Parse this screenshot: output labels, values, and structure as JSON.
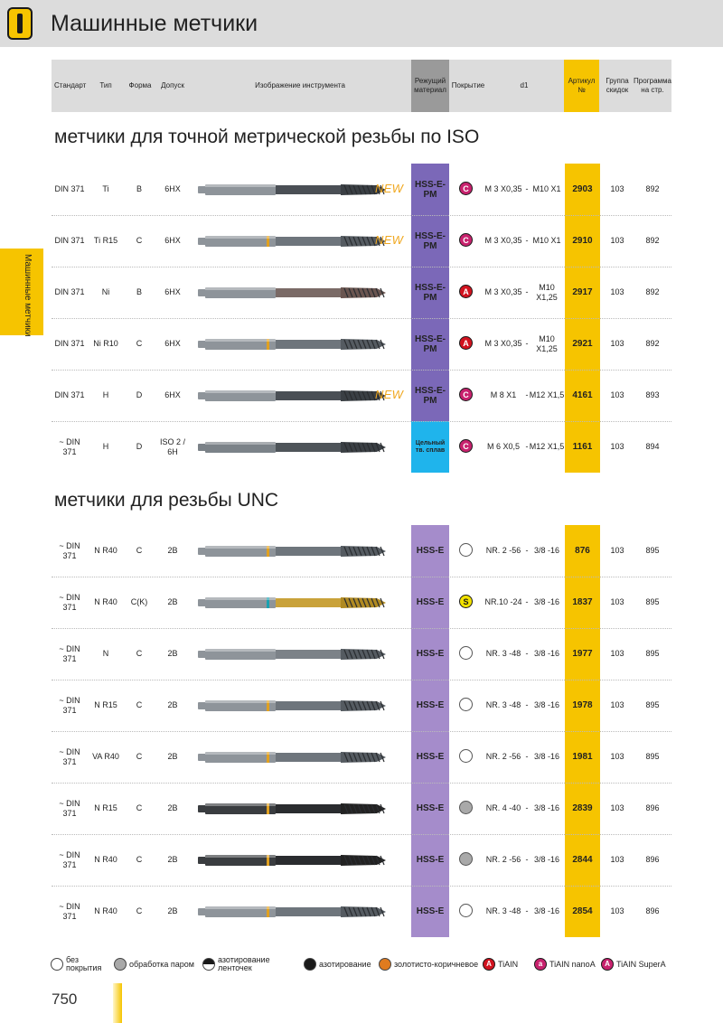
{
  "page": {
    "title": "Машинные метчики",
    "side_tab": "Машинные метчики",
    "page_number": "750"
  },
  "header": {
    "standard": "Стандарт",
    "type": "Тип",
    "form": "Форма",
    "tolerance": "Допуск",
    "image": "Изображение инструмента",
    "cutting_material": "Режущий материал",
    "coating": "Покрытие",
    "d1": "d1",
    "article": "Артикул №",
    "discount_group": "Группа скидок",
    "program_page": "Программа на стр."
  },
  "colors": {
    "accent_yellow": "#f6c400",
    "header_grey": "#dcdcdc",
    "hss_e_pm": "#7b68b8",
    "hss_e": "#a58ccb",
    "carbide": "#1fb4ec",
    "coat_tiain_super": "#c8226e",
    "coat_tiain_nano": "#c8226e",
    "coat_tiain": "#d1131f",
    "new_badge": "#f0a820"
  },
  "sections": [
    {
      "title": "метчики для точной метрической резьбы по  ISO",
      "rows": [
        {
          "standard": "DIN 371",
          "type": "Ti",
          "form": "B",
          "tolerance": "6HX",
          "new": "NEW",
          "tool_icon": "tap-blackened-icon",
          "material": "HSS-E-PM",
          "material_color": "#7b68b8",
          "coating_symbol": "C",
          "coating_icon": "coating-tiain-super-icon",
          "coating_color": "#c8226e",
          "d1_from": "M 3 X0,35",
          "dash": "-",
          "d1_to": "M10 X1",
          "article": "2903",
          "group": "103",
          "page": "892"
        },
        {
          "standard": "DIN 371",
          "type": "Ti R15",
          "form": "C",
          "tolerance": "6HX",
          "new": "NEW",
          "tool_icon": "tap-spiral-flute-icon",
          "material": "HSS-E-PM",
          "material_color": "#7b68b8",
          "coating_symbol": "C",
          "coating_icon": "coating-tiain-super-icon",
          "coating_color": "#c8226e",
          "d1_from": "M 3 X0,35",
          "dash": "-",
          "d1_to": "M10 X1",
          "article": "2910",
          "group": "103",
          "page": "892"
        },
        {
          "standard": "DIN 371",
          "type": "Ni",
          "form": "B",
          "tolerance": "6HX",
          "new": "",
          "tool_icon": "tap-bronze-icon",
          "material": "HSS-E-PM",
          "material_color": "#7b68b8",
          "coating_symbol": "A",
          "coating_icon": "coating-tiain-icon",
          "coating_color": "#d1131f",
          "d1_from": "M 3 X0,35",
          "dash": "-",
          "d1_to": "M10 X1,25",
          "article": "2917",
          "group": "103",
          "page": "892"
        },
        {
          "standard": "DIN 371",
          "type": "Ni R10",
          "form": "C",
          "tolerance": "6HX",
          "new": "",
          "tool_icon": "tap-spiral-flute-icon",
          "material": "HSS-E-PM",
          "material_color": "#7b68b8",
          "coating_symbol": "A",
          "coating_icon": "coating-tiain-icon",
          "coating_color": "#d1131f",
          "d1_from": "M 3 X0,35",
          "dash": "-",
          "d1_to": "M10 X1,25",
          "article": "2921",
          "group": "103",
          "page": "892"
        },
        {
          "standard": "DIN 371",
          "type": "H",
          "form": "D",
          "tolerance": "6HX",
          "new": "NEW",
          "tool_icon": "tap-blackened-icon",
          "material": "HSS-E-PM",
          "material_color": "#7b68b8",
          "coating_symbol": "C",
          "coating_icon": "coating-tiain-super-icon",
          "coating_color": "#c8226e",
          "d1_from": "M 8 X1",
          "dash": "-",
          "d1_to": "M12 X1,5",
          "article": "4161",
          "group": "103",
          "page": "893"
        },
        {
          "standard": "~ DIN 371",
          "type": "H",
          "form": "D",
          "tolerance": "ISO 2 / 6H",
          "new": "",
          "tool_icon": "tap-carbide-icon",
          "material": "Цельный тв. сплав",
          "material_color": "#1fb4ec",
          "coating_symbol": "C",
          "coating_icon": "coating-tiain-super-icon",
          "coating_color": "#c8226e",
          "d1_from": "M 6 X0,5",
          "dash": "-",
          "d1_to": "M12 X1,5",
          "article": "1161",
          "group": "103",
          "page": "894"
        }
      ]
    },
    {
      "title": "метчики для  резьбы UNC",
      "rows": [
        {
          "standard": "~ DIN 371",
          "type": "N R40",
          "form": "C",
          "tolerance": "2B",
          "new": "",
          "tool_icon": "tap-spiral-flute-icon",
          "material": "HSS-E",
          "material_color": "#a58ccb",
          "coating_symbol": "",
          "coating_icon": "coating-none-icon",
          "coating_color": "#ffffff",
          "d1_from": "NR. 2 -56",
          "dash": "-",
          "d1_to": "3/8 -16",
          "article": "876",
          "group": "103",
          "page": "895"
        },
        {
          "standard": "~ DIN 371",
          "type": "N R40",
          "form": "C(K)",
          "tolerance": "2B",
          "new": "",
          "tool_icon": "tap-tin-gold-icon",
          "material": "HSS-E",
          "material_color": "#a58ccb",
          "coating_symbol": "S",
          "coating_icon": "coating-tin-icon",
          "coating_color": "#f2e200",
          "d1_from": "NR.10 -24",
          "dash": "-",
          "d1_to": "3/8 -16",
          "article": "1837",
          "group": "103",
          "page": "895"
        },
        {
          "standard": "~ DIN 371",
          "type": "N",
          "form": "C",
          "tolerance": "2B",
          "new": "",
          "tool_icon": "tap-straight-flute-icon",
          "material": "HSS-E",
          "material_color": "#a58ccb",
          "coating_symbol": "",
          "coating_icon": "coating-none-icon",
          "coating_color": "#ffffff",
          "d1_from": "NR. 3 -48",
          "dash": "-",
          "d1_to": "3/8 -16",
          "article": "1977",
          "group": "103",
          "page": "895"
        },
        {
          "standard": "~ DIN 371",
          "type": "N R15",
          "form": "C",
          "tolerance": "2B",
          "new": "",
          "tool_icon": "tap-spiral-flute-icon",
          "material": "HSS-E",
          "material_color": "#a58ccb",
          "coating_symbol": "",
          "coating_icon": "coating-none-icon",
          "coating_color": "#ffffff",
          "d1_from": "NR. 3 -48",
          "dash": "-",
          "d1_to": "3/8 -16",
          "article": "1978",
          "group": "103",
          "page": "895"
        },
        {
          "standard": "~ DIN 371",
          "type": "VA R40",
          "form": "C",
          "tolerance": "2B",
          "new": "",
          "tool_icon": "tap-spiral-flute-icon",
          "material": "HSS-E",
          "material_color": "#a58ccb",
          "coating_symbol": "",
          "coating_icon": "coating-none-icon",
          "coating_color": "#ffffff",
          "d1_from": "NR. 2 -56",
          "dash": "-",
          "d1_to": "3/8 -16",
          "article": "1981",
          "group": "103",
          "page": "895"
        },
        {
          "standard": "~ DIN 371",
          "type": "N R15",
          "form": "C",
          "tolerance": "2B",
          "new": "",
          "tool_icon": "tap-black-spiral-icon",
          "material": "HSS-E",
          "material_color": "#a58ccb",
          "coating_symbol": "",
          "coating_icon": "coating-steam-icon",
          "coating_color": "#a9a9a9",
          "d1_from": "NR. 4 -40",
          "dash": "-",
          "d1_to": "3/8 -16",
          "article": "2839",
          "group": "103",
          "page": "896"
        },
        {
          "standard": "~ DIN 371",
          "type": "N R40",
          "form": "C",
          "tolerance": "2B",
          "new": "",
          "tool_icon": "tap-black-spiral-icon",
          "material": "HSS-E",
          "material_color": "#a58ccb",
          "coating_symbol": "",
          "coating_icon": "coating-steam-icon",
          "coating_color": "#a9a9a9",
          "d1_from": "NR. 2 -56",
          "dash": "-",
          "d1_to": "3/8 -16",
          "article": "2844",
          "group": "103",
          "page": "896"
        },
        {
          "standard": "~ DIN 371",
          "type": "N R40",
          "form": "C",
          "tolerance": "2B",
          "new": "",
          "tool_icon": "tap-spiral-flute-icon",
          "material": "HSS-E",
          "material_color": "#a58ccb",
          "coating_symbol": "",
          "coating_icon": "coating-none-icon",
          "coating_color": "#ffffff",
          "d1_from": "NR. 3 -48",
          "dash": "-",
          "d1_to": "3/8 -16",
          "article": "2854",
          "group": "103",
          "page": "896"
        }
      ]
    }
  ],
  "legend": [
    {
      "label": "без покрытия",
      "icon": "coating-none-icon",
      "color": "#ffffff",
      "symbol": ""
    },
    {
      "label": "обработка паром",
      "icon": "coating-steam-icon",
      "color": "#a9a9a9",
      "symbol": ""
    },
    {
      "label": "азотирование ленточек",
      "icon": "coating-half-nitrided-icon",
      "color": "#1a1a1a",
      "symbol": ""
    },
    {
      "label": "азотирование",
      "icon": "coating-nitrided-icon",
      "color": "#1a1a1a",
      "symbol": ""
    },
    {
      "label": "золотисто-коричневое",
      "icon": "coating-gold-brown-icon",
      "color": "#e07b1f",
      "symbol": ""
    },
    {
      "label": "TiAIN",
      "icon": "coating-tiain-icon",
      "color": "#d1131f",
      "symbol": "A"
    },
    {
      "label": "TiAIN nanoA",
      "icon": "coating-tiain-nano-icon",
      "color": "#c8226e",
      "symbol": "a"
    },
    {
      "label": "TiAIN SuperA",
      "icon": "coating-tiain-super-icon",
      "color": "#c8226e",
      "symbol": "A"
    }
  ]
}
